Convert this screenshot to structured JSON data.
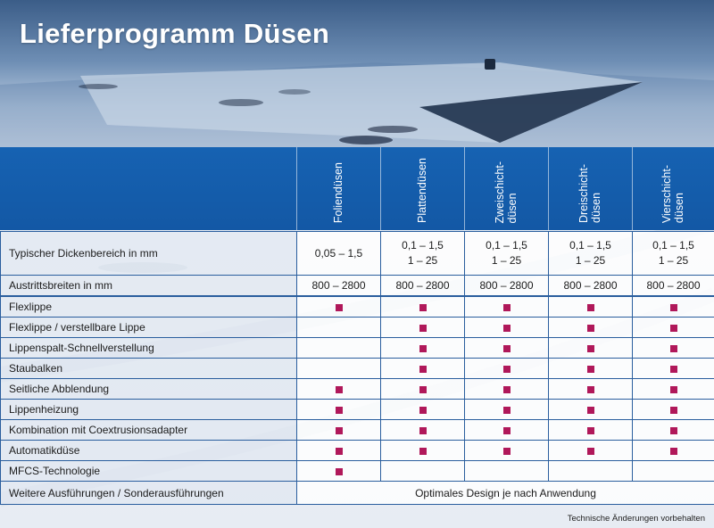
{
  "title": "Lieferprogramm Düsen",
  "columns": [
    {
      "label": "Foliendüsen"
    },
    {
      "label": "Plattendüsen"
    },
    {
      "label": "Zweischicht-\ndüsen"
    },
    {
      "label": "Dreischicht-\ndüsen"
    },
    {
      "label": "Vierschicht-\ndüsen"
    }
  ],
  "rows": {
    "thickness": {
      "label": "Typischer Dickenbereich in mm",
      "values": [
        {
          "l1": "0,05 – 1,5",
          "l2": ""
        },
        {
          "l1": "0,1 – 1,5",
          "l2": "1 – 25"
        },
        {
          "l1": "0,1 – 1,5",
          "l2": "1 – 25"
        },
        {
          "l1": "0,1 – 1,5",
          "l2": "1 – 25"
        },
        {
          "l1": "0,1 – 1,5",
          "l2": "1 – 25"
        }
      ]
    },
    "widths": {
      "label": "Austrittsbreiten in mm",
      "values": [
        "800 – 2800",
        "800 – 2800",
        "800 – 2800",
        "800 – 2800",
        "800 – 2800"
      ]
    },
    "features": [
      {
        "label": "Flexlippe",
        "marks": [
          true,
          true,
          true,
          true,
          true
        ]
      },
      {
        "label": "Flexlippe / verstellbare Lippe",
        "marks": [
          false,
          true,
          true,
          true,
          true
        ]
      },
      {
        "label": "Lippenspalt-Schnellverstellung",
        "marks": [
          false,
          true,
          true,
          true,
          true
        ]
      },
      {
        "label": "Staubalken",
        "marks": [
          false,
          true,
          true,
          true,
          true
        ]
      },
      {
        "label": "Seitliche Abblendung",
        "marks": [
          true,
          true,
          true,
          true,
          true
        ]
      },
      {
        "label": "Lippenheizung",
        "marks": [
          true,
          true,
          true,
          true,
          true
        ]
      },
      {
        "label": "Kombination mit Coextrusionsadapter",
        "marks": [
          true,
          true,
          true,
          true,
          true
        ]
      },
      {
        "label": "Automatikdüse",
        "marks": [
          true,
          true,
          true,
          true,
          true
        ]
      },
      {
        "label": "MFCS-Technologie",
        "marks": [
          true,
          false,
          false,
          false,
          false
        ]
      }
    ],
    "other": {
      "label": "Weitere Ausführungen / Sonderausführungen",
      "value": "Optimales Design je nach Anwendung"
    }
  },
  "footnote": "Technische Änderungen vorbehalten",
  "colors": {
    "header_blue": "#1662b2",
    "mark": "#b0185a",
    "grid_line": "#2a5e9e"
  }
}
